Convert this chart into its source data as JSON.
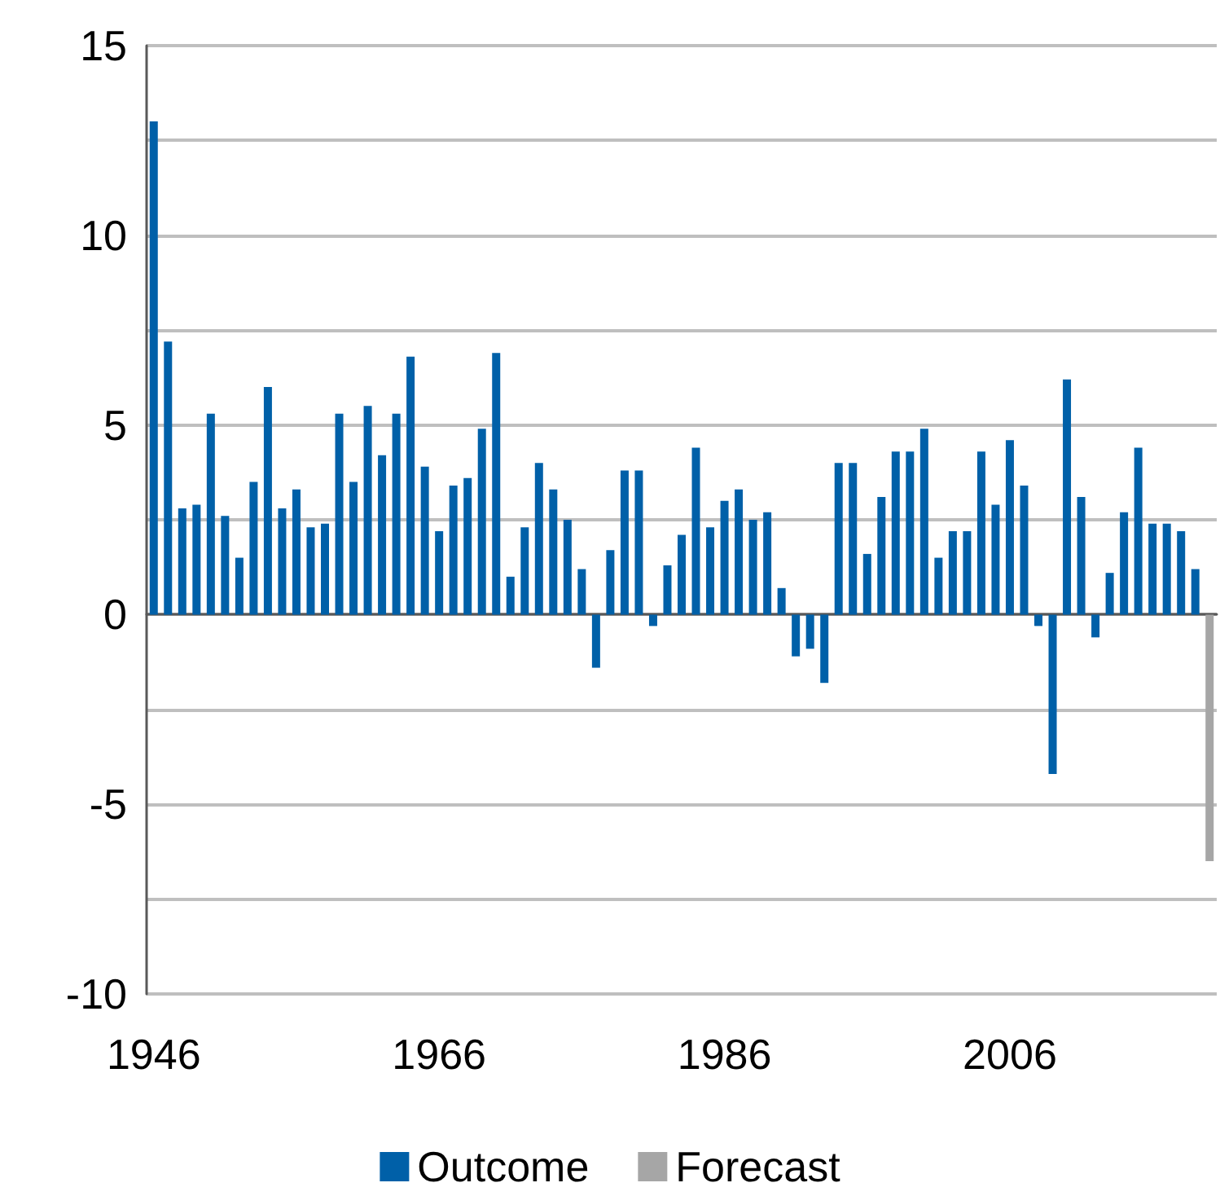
{
  "chart_data": {
    "type": "bar",
    "categories": [
      "1946",
      null,
      null,
      null,
      null,
      null,
      null,
      null,
      null,
      null,
      null,
      null,
      null,
      null,
      null,
      null,
      null,
      null,
      null,
      null,
      "1966",
      null,
      null,
      null,
      null,
      null,
      null,
      null,
      null,
      null,
      null,
      null,
      null,
      null,
      null,
      null,
      null,
      null,
      null,
      null,
      "1986",
      null,
      null,
      null,
      null,
      null,
      null,
      null,
      null,
      null,
      null,
      null,
      null,
      null,
      null,
      null,
      null,
      null,
      null,
      null,
      "2006",
      null,
      null,
      null,
      null,
      null,
      null,
      null,
      null,
      null,
      null,
      null,
      null,
      null,
      null
    ],
    "series": [
      {
        "name": "Outcome",
        "color": "#0060a8",
        "values": [
          13.0,
          7.2,
          2.8,
          2.9,
          5.3,
          2.6,
          1.5,
          3.5,
          6.0,
          2.8,
          3.3,
          2.3,
          2.4,
          5.3,
          3.5,
          5.5,
          4.2,
          5.3,
          6.8,
          3.9,
          2.2,
          3.4,
          3.6,
          4.9,
          6.9,
          1.0,
          2.3,
          4.0,
          3.3,
          2.5,
          1.2,
          -1.4,
          1.7,
          3.8,
          3.8,
          -0.3,
          1.3,
          2.1,
          4.4,
          2.3,
          3.0,
          3.3,
          2.5,
          2.7,
          0.7,
          -1.1,
          -0.9,
          -1.8,
          4.0,
          4.0,
          1.6,
          3.1,
          4.3,
          4.3,
          4.9,
          1.5,
          2.2,
          2.2,
          4.3,
          2.9,
          4.6,
          3.4,
          -0.3,
          -4.2,
          6.2,
          3.1,
          -0.6,
          1.1,
          2.7,
          4.4,
          2.4,
          2.4,
          2.2,
          1.2,
          null
        ]
      },
      {
        "name": "Forecast",
        "color": "#a6a6a6",
        "values": [
          null,
          null,
          null,
          null,
          null,
          null,
          null,
          null,
          null,
          null,
          null,
          null,
          null,
          null,
          null,
          null,
          null,
          null,
          null,
          null,
          null,
          null,
          null,
          null,
          null,
          null,
          null,
          null,
          null,
          null,
          null,
          null,
          null,
          null,
          null,
          null,
          null,
          null,
          null,
          null,
          null,
          null,
          null,
          null,
          null,
          null,
          null,
          null,
          null,
          null,
          null,
          null,
          null,
          null,
          null,
          null,
          null,
          null,
          null,
          null,
          null,
          null,
          null,
          null,
          null,
          null,
          null,
          null,
          null,
          null,
          null,
          null,
          null,
          null,
          -6.5
        ]
      }
    ],
    "ylim": [
      -10,
      15
    ],
    "yticks": [
      -10,
      {
        "value": -7.5,
        "label": null
      },
      -5,
      {
        "value": -2.5,
        "label": null
      },
      0,
      {
        "value": 2.5,
        "label": null
      },
      5,
      {
        "value": 7.5,
        "label": null
      },
      10,
      {
        "value": 12.5,
        "label": null
      },
      15
    ],
    "grid": "y",
    "legend": "bottom"
  }
}
